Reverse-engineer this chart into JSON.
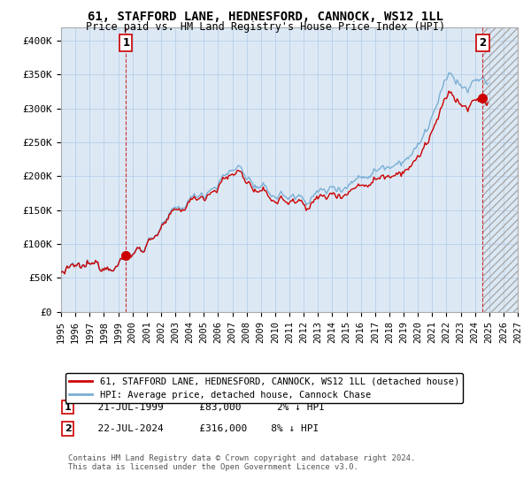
{
  "title": "61, STAFFORD LANE, HEDNESFORD, CANNOCK, WS12 1LL",
  "subtitle": "Price paid vs. HM Land Registry's House Price Index (HPI)",
  "legend_line1": "61, STAFFORD LANE, HEDNESFORD, CANNOCK, WS12 1LL (detached house)",
  "legend_line2": "HPI: Average price, detached house, Cannock Chase",
  "annotation1_label": "1",
  "annotation1_date": "21-JUL-1999",
  "annotation1_price": "£83,000",
  "annotation1_hpi": "2% ↓ HPI",
  "annotation2_label": "2",
  "annotation2_date": "22-JUL-2024",
  "annotation2_price": "£316,000",
  "annotation2_hpi": "8% ↓ HPI",
  "footnote": "Contains HM Land Registry data © Crown copyright and database right 2024.\nThis data is licensed under the Open Government Licence v3.0.",
  "sale1_year": 1999.55,
  "sale1_value": 83000,
  "sale2_year": 2024.55,
  "sale2_value": 316000,
  "hpi_color": "#7bafd4",
  "price_color": "#cc0000",
  "sale_marker_color": "#cc0000",
  "background_color": "#ffffff",
  "plot_bg_color": "#dce9f5",
  "grid_color": "#b8cfe8",
  "ylim": [
    0,
    420000
  ],
  "xlim_start": 1995,
  "xlim_end": 2027,
  "yticks": [
    0,
    50000,
    100000,
    150000,
    200000,
    250000,
    300000,
    350000,
    400000
  ],
  "ytick_labels": [
    "£0",
    "£50K",
    "£100K",
    "£150K",
    "£200K",
    "£250K",
    "£300K",
    "£350K",
    "£400K"
  ],
  "xtick_years": [
    1995,
    1996,
    1997,
    1998,
    1999,
    2000,
    2001,
    2002,
    2003,
    2004,
    2005,
    2006,
    2007,
    2008,
    2009,
    2010,
    2011,
    2012,
    2013,
    2014,
    2015,
    2016,
    2017,
    2018,
    2019,
    2020,
    2021,
    2022,
    2023,
    2024,
    2025,
    2026,
    2027
  ]
}
